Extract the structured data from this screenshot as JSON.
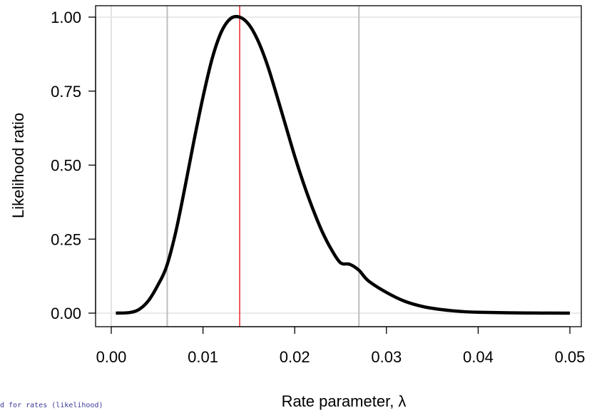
{
  "chart_data": {
    "type": "line",
    "xlabel": "Rate parameter, λ",
    "ylabel": "Likelihood ratio",
    "xlim": [
      0.0,
      0.05
    ],
    "ylim": [
      0.0,
      1.0
    ],
    "x_ticks": [
      "0.00",
      "0.01",
      "0.02",
      "0.03",
      "0.04",
      "0.05"
    ],
    "y_ticks": [
      "0.00",
      "0.25",
      "0.50",
      "0.75",
      "1.00"
    ],
    "series": [
      {
        "x": [
          0.0005,
          0.002,
          0.003,
          0.004,
          0.005,
          0.006,
          0.007,
          0.008,
          0.009,
          0.01,
          0.011,
          0.012,
          0.013,
          0.014,
          0.015,
          0.016,
          0.017,
          0.018,
          0.019,
          0.02,
          0.021,
          0.022,
          0.023,
          0.024,
          0.025,
          0.026,
          0.027,
          0.028,
          0.03,
          0.032,
          0.034,
          0.036,
          0.038,
          0.04,
          0.045,
          0.05
        ],
        "y": [
          0.0,
          0.002,
          0.012,
          0.04,
          0.09,
          0.155,
          0.27,
          0.42,
          0.58,
          0.73,
          0.86,
          0.95,
          0.995,
          1.0,
          0.975,
          0.92,
          0.84,
          0.74,
          0.635,
          0.53,
          0.435,
          0.35,
          0.275,
          0.215,
          0.17,
          0.165,
          0.145,
          0.11,
          0.07,
          0.04,
          0.022,
          0.012,
          0.006,
          0.003,
          0.0005,
          0.0
        ],
        "color": "#000000"
      }
    ],
    "reference_lines": {
      "vertical_gray": [
        0.0,
        0.0061,
        0.027
      ],
      "vertical_red": 0.014,
      "horizontal_gray": [
        0.0,
        1.0
      ],
      "gray_color": "#bdbdbd",
      "red_color": "#e8000b"
    }
  },
  "footnote": "d for rates (likelihood)"
}
